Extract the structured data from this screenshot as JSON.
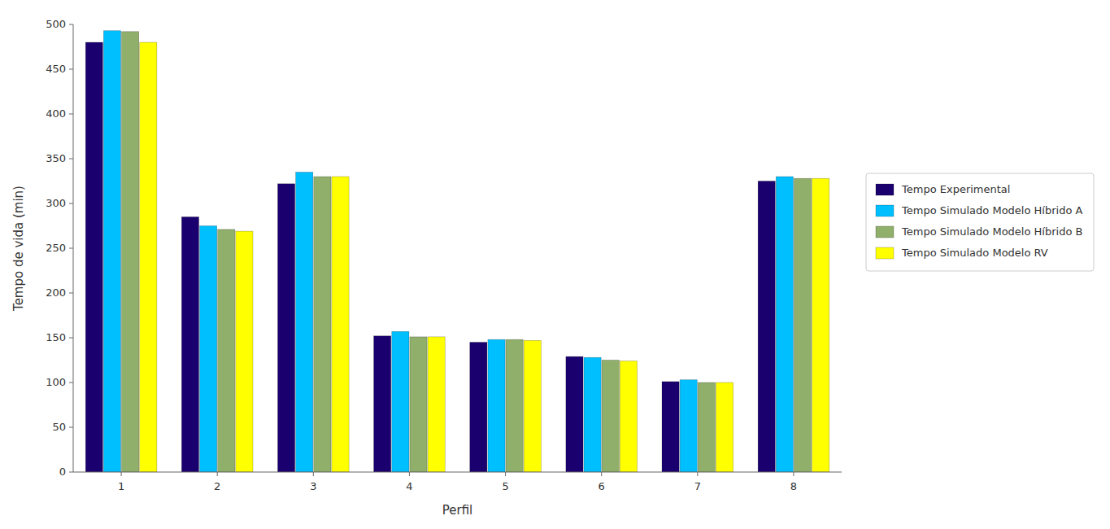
{
  "chart_data": {
    "type": "bar",
    "x_label": "Perfil",
    "y_label": "Tempo de vida (min)",
    "categories": [
      1,
      2,
      3,
      4,
      5,
      6,
      7,
      8
    ],
    "series": [
      {
        "name": "Tempo Experimental",
        "color": "#1A006F",
        "values": [
          480,
          285,
          322,
          152,
          145,
          129,
          101,
          325
        ]
      },
      {
        "name": "Tempo Simulado Modelo Híbrido A",
        "color": "#00BFFF",
        "values": [
          493,
          275,
          335,
          157,
          148,
          128,
          103,
          330
        ]
      },
      {
        "name": "Tempo Simulado Modelo Híbrido B",
        "color": "#8FAF6A",
        "values": [
          492,
          271,
          330,
          151,
          148,
          125,
          100,
          328
        ]
      },
      {
        "name": "Tempo Simulado Modelo RV",
        "color": "#FFFF00",
        "values": [
          480,
          269,
          330,
          151,
          147,
          124,
          100,
          328
        ]
      }
    ],
    "ylim": [
      0,
      500
    ],
    "yticks": [
      0,
      50,
      100,
      150,
      200,
      250,
      300,
      350,
      400,
      450,
      500
    ],
    "grid": false,
    "legend": "right"
  }
}
